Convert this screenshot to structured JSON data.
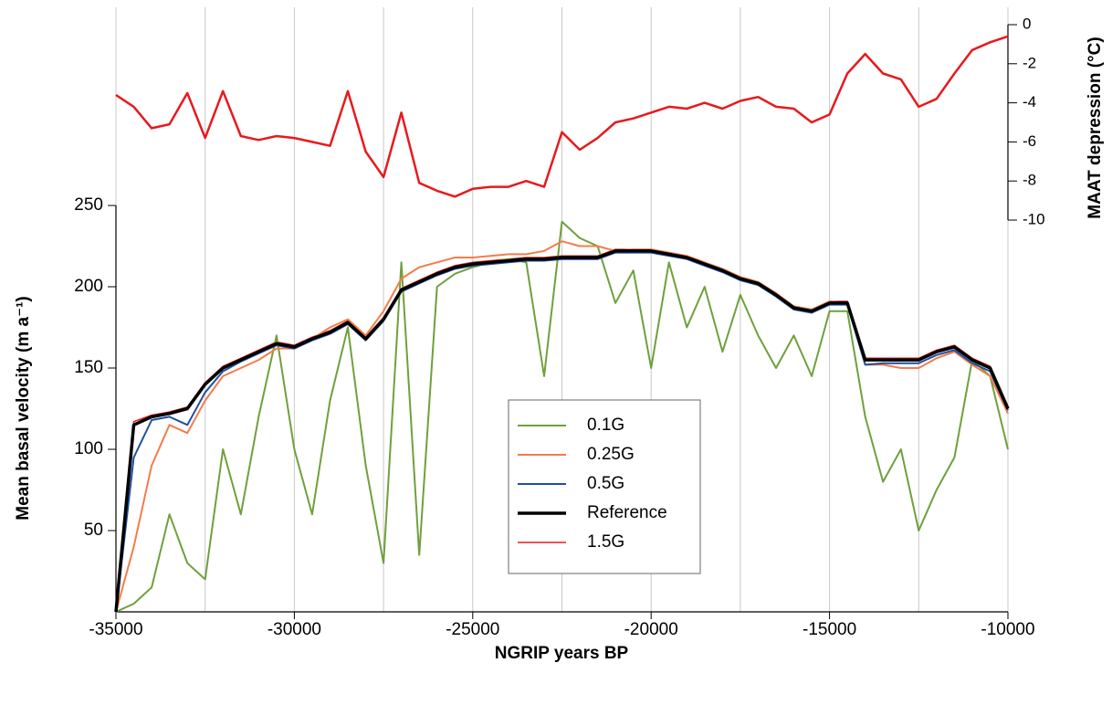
{
  "chart_data": {
    "type": "line",
    "xlabel": "NGRIP years BP",
    "ylabel": "Mean basal velocity (m a⁻¹)",
    "y2label": "MAAT depression (°C)",
    "x": [
      -35000,
      -34500,
      -34000,
      -33500,
      -33000,
      -32500,
      -32000,
      -31500,
      -31000,
      -30500,
      -30000,
      -29500,
      -29000,
      -28500,
      -28000,
      -27500,
      -27000,
      -26500,
      -26000,
      -25500,
      -25000,
      -24500,
      -24000,
      -23500,
      -23000,
      -22500,
      -22000,
      -21500,
      -21000,
      -20500,
      -20000,
      -19500,
      -19000,
      -18500,
      -18000,
      -17500,
      -17000,
      -16500,
      -16000,
      -15500,
      -15000,
      -14500,
      -14000,
      -13500,
      -13000,
      -12500,
      -12000,
      -11500,
      -11000,
      -10500,
      -10000
    ],
    "xlim": [
      -35000,
      -10000
    ],
    "xticks": [
      -35000,
      -30000,
      -25000,
      -20000,
      -15000,
      -10000
    ],
    "xgrid": [
      -35000,
      -32500,
      -30000,
      -27500,
      -25000,
      -22500,
      -20000,
      -17500,
      -15000,
      -12500,
      -10000
    ],
    "ylim": [
      0,
      250
    ],
    "yticks": [
      50,
      100,
      150,
      200,
      250
    ],
    "y2lim": [
      -10,
      0
    ],
    "y2ticks": [
      -10,
      -8,
      -6,
      -4,
      -2,
      0
    ],
    "legend": "center",
    "series": [
      {
        "name": "0.1G",
        "color": "#6fa03c",
        "width": 2,
        "values": [
          0,
          5,
          15,
          60,
          30,
          20,
          100,
          60,
          120,
          170,
          100,
          60,
          130,
          175,
          90,
          30,
          215,
          35,
          200,
          208,
          212,
          215,
          217,
          215,
          145,
          240,
          230,
          225,
          190,
          210,
          150,
          215,
          175,
          200,
          160,
          195,
          170,
          150,
          170,
          145,
          185,
          185,
          120,
          80,
          100,
          50,
          75,
          95,
          155,
          145,
          100
        ]
      },
      {
        "name": "0.25G",
        "color": "#f47c4a",
        "width": 2,
        "values": [
          0,
          40,
          90,
          115,
          110,
          130,
          145,
          150,
          155,
          162,
          162,
          168,
          175,
          180,
          170,
          185,
          205,
          212,
          215,
          218,
          218,
          219,
          220,
          220,
          222,
          228,
          225,
          225,
          222,
          223,
          223,
          221,
          219,
          215,
          211,
          206,
          203,
          196,
          188,
          186,
          191,
          190,
          152,
          152,
          150,
          150,
          156,
          160,
          152,
          145,
          122
        ]
      },
      {
        "name": "0.5G",
        "color": "#1f4fa0",
        "width": 2,
        "values": [
          0,
          95,
          118,
          120,
          115,
          135,
          148,
          154,
          159,
          164,
          162,
          167,
          171,
          177,
          167,
          179,
          197,
          202,
          207,
          211,
          213,
          214,
          215,
          216,
          216,
          217,
          217,
          217,
          221,
          221,
          221,
          219,
          217,
          213,
          209,
          204,
          201,
          194,
          186,
          184,
          189,
          189,
          152,
          153,
          153,
          153,
          158,
          161,
          153,
          148,
          124
        ]
      },
      {
        "name": "Reference",
        "color": "#000000",
        "width": 3.5,
        "values": [
          0,
          115,
          120,
          122,
          125,
          140,
          150,
          155,
          160,
          165,
          163,
          168,
          172,
          178,
          168,
          180,
          198,
          203,
          208,
          212,
          214,
          215,
          216,
          217,
          217,
          218,
          218,
          218,
          222,
          222,
          222,
          220,
          218,
          214,
          210,
          205,
          202,
          195,
          187,
          185,
          190,
          190,
          155,
          155,
          155,
          155,
          160,
          163,
          155,
          150,
          125
        ]
      },
      {
        "name": "1.5G",
        "color": "#e8191c",
        "width": 1.5,
        "values": [
          0,
          117,
          121,
          123,
          126,
          141,
          151,
          156,
          161,
          166,
          164,
          169,
          173,
          179,
          169,
          181,
          199,
          204,
          209,
          213,
          215,
          216,
          217,
          218,
          218,
          219,
          219,
          219,
          223,
          223,
          223,
          221,
          219,
          215,
          211,
          206,
          203,
          196,
          188,
          186,
          191,
          191,
          156,
          156,
          156,
          156,
          161,
          164,
          156,
          151,
          126
        ]
      },
      {
        "axis": "y2",
        "color": "#e8191c",
        "width": 2.5,
        "values": [
          -3.6,
          -4.2,
          -5.3,
          -5.1,
          -3.5,
          -5.8,
          -3.4,
          -5.7,
          -5.9,
          -5.7,
          -5.8,
          -6.0,
          -6.2,
          -3.4,
          -6.5,
          -7.8,
          -4.5,
          -8.1,
          -8.5,
          -8.8,
          -8.4,
          -8.3,
          -8.3,
          -8.0,
          -8.3,
          -5.5,
          -6.4,
          -5.8,
          -5.0,
          -4.8,
          -4.5,
          -4.2,
          -4.3,
          -4.0,
          -4.3,
          -3.9,
          -3.7,
          -4.2,
          -4.3,
          -5.0,
          -4.6,
          -2.5,
          -1.5,
          -2.5,
          -2.8,
          -4.2,
          -3.8,
          -2.5,
          -1.3,
          -0.9,
          -0.6
        ]
      }
    ]
  }
}
